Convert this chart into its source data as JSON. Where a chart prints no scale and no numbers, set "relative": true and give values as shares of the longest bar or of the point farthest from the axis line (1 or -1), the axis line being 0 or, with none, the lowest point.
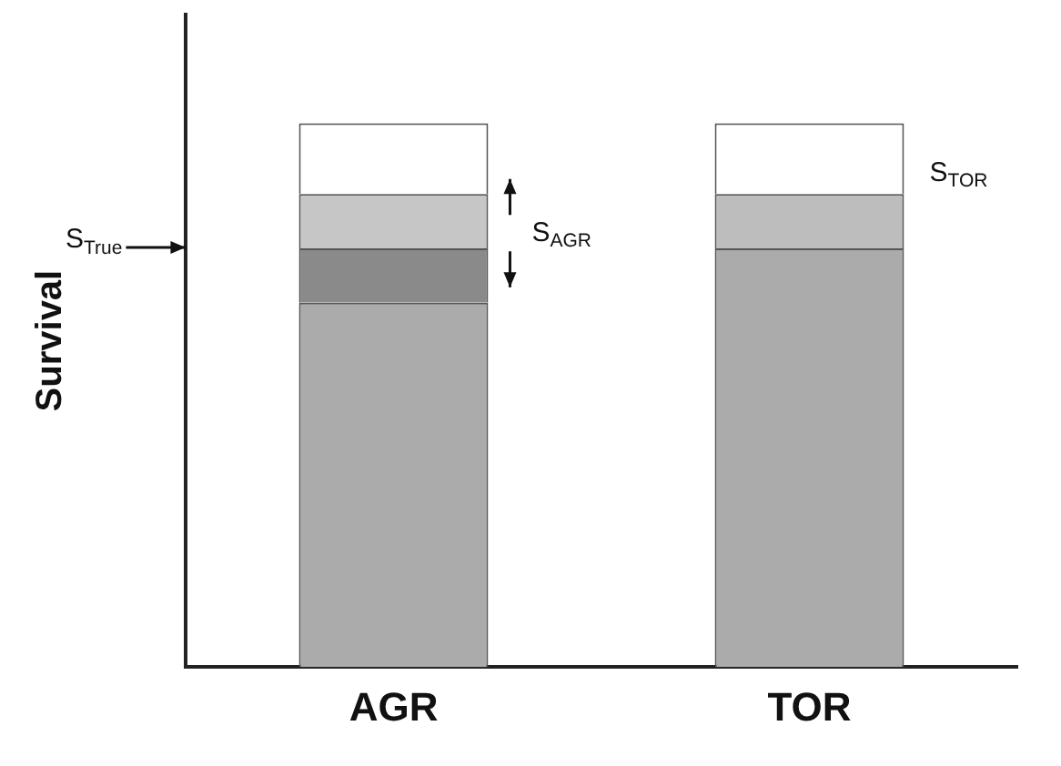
{
  "chart_data": {
    "type": "bar",
    "relative": true,
    "stacked": true,
    "ylabel": "Survival",
    "categories": [
      "AGR",
      "TOR"
    ],
    "series": [
      {
        "color": "#ababab",
        "values": [
          0.67,
          0.77
        ]
      },
      {
        "color": "#8a8a8a",
        "values": [
          0.1,
          null
        ]
      },
      {
        "color": "#c6c6c6",
        "values": [
          0.1,
          null
        ]
      },
      {
        "color": "#bdbdbd",
        "values": [
          null,
          0.1
        ]
      },
      {
        "color": "#ffffff",
        "values": [
          0.13,
          0.13
        ]
      }
    ],
    "annotations": [
      "S$_{True}$",
      "S$_{AGR}$",
      "S$_{TOR}$"
    ],
    "grid": false,
    "legend": false
  }
}
